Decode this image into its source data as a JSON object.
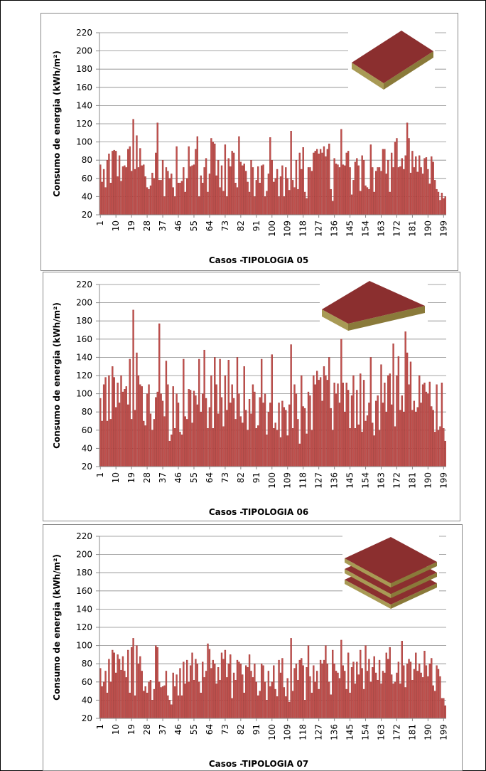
{
  "chart_data": [
    {
      "type": "bar",
      "ylabel": "Consumo de energia (kWh/m²)",
      "xlabel": "Casos -TIPOLOGIA 05",
      "color": "#c0504d",
      "x": [
        1,
        2,
        3,
        4,
        5,
        6,
        7,
        8,
        9,
        10,
        11,
        12,
        13,
        14,
        15,
        16,
        17,
        18,
        19,
        20,
        21,
        22,
        23,
        24,
        25,
        26,
        27,
        28,
        29,
        30,
        31,
        32,
        33,
        34,
        35,
        36,
        37,
        38,
        39,
        40,
        41,
        42,
        43,
        44,
        45,
        46,
        47,
        48,
        49,
        50,
        51,
        52,
        53,
        54,
        55,
        56,
        57,
        58,
        59,
        60,
        61,
        62,
        63,
        64,
        65,
        66,
        67,
        68,
        69,
        70,
        71,
        72,
        73,
        74,
        75,
        76,
        77,
        78,
        79,
        80,
        81,
        82,
        83,
        84,
        85,
        86,
        87,
        88,
        89,
        90,
        91,
        92,
        93,
        94,
        95,
        96,
        97,
        98,
        99,
        100,
        101,
        102,
        103,
        104,
        105,
        106,
        107,
        108,
        109,
        110,
        111,
        112,
        113,
        114,
        115,
        116,
        117,
        118,
        119,
        120,
        121,
        122,
        123,
        124,
        125,
        126,
        127,
        128,
        129,
        130,
        131,
        132,
        133,
        134,
        135,
        136,
        137,
        138,
        139,
        140,
        141,
        142,
        143,
        144,
        145,
        146,
        147,
        148,
        149,
        150,
        151,
        152,
        153,
        154,
        155,
        156,
        157,
        158,
        159,
        160,
        161,
        162,
        163,
        164,
        165,
        166,
        167,
        168,
        169,
        170,
        171,
        172,
        173,
        174,
        175,
        176,
        177,
        178,
        179,
        180,
        181,
        182,
        183,
        184,
        185,
        186,
        187,
        188,
        189,
        190,
        191,
        192,
        193,
        194,
        195,
        196,
        197,
        198,
        199,
        200
      ],
      "values": [
        75,
        56,
        70,
        50,
        80,
        87,
        55,
        90,
        91,
        90,
        62,
        85,
        57,
        73,
        74,
        72,
        92,
        95,
        68,
        125,
        70,
        107,
        72,
        93,
        74,
        75,
        62,
        50,
        48,
        52,
        66,
        60,
        88,
        121,
        58,
        58,
        80,
        40,
        72,
        68,
        60,
        65,
        50,
        40,
        95,
        55,
        55,
        57,
        72,
        45,
        60,
        95,
        73,
        74,
        75,
        92,
        106,
        40,
        63,
        55,
        72,
        82,
        45,
        65,
        104,
        100,
        98,
        63,
        80,
        50,
        74,
        46,
        97,
        40,
        82,
        73,
        90,
        88,
        55,
        50,
        106,
        78,
        74,
        76,
        68,
        56,
        45,
        80,
        72,
        40,
        58,
        73,
        55,
        74,
        75,
        40,
        46,
        65,
        105,
        80,
        56,
        60,
        70,
        40,
        62,
        74,
        40,
        72,
        60,
        47,
        112,
        58,
        50,
        80,
        48,
        88,
        70,
        94,
        45,
        38,
        72,
        72,
        68,
        88,
        90,
        92,
        87,
        92,
        88,
        95,
        84,
        92,
        98,
        48,
        35,
        82,
        76,
        75,
        72,
        114,
        75,
        74,
        88,
        90,
        72,
        42,
        58,
        78,
        82,
        74,
        46,
        85,
        80,
        52,
        50,
        48,
        97,
        72,
        45,
        68,
        72,
        72,
        68,
        92,
        92,
        65,
        80,
        45,
        88,
        72,
        100,
        104,
        72,
        73,
        82,
        70,
        85,
        121,
        104,
        66,
        90,
        72,
        84,
        67,
        85,
        72,
        65,
        82,
        83,
        70,
        54,
        84,
        78,
        58,
        48,
        45,
        36,
        44,
        38,
        40
      ],
      "xlim": [
        0.5,
        200.5
      ],
      "xticks": [
        1,
        10,
        19,
        28,
        37,
        46,
        55,
        64,
        73,
        82,
        91,
        100,
        109,
        118,
        127,
        136,
        145,
        154,
        163,
        172,
        181,
        190,
        199
      ],
      "ylim": [
        20,
        220
      ],
      "yticks": [
        20,
        40,
        60,
        80,
        100,
        120,
        140,
        160,
        180,
        200,
        220
      ],
      "grid": true
    },
    {
      "type": "bar",
      "ylabel": "Consumo de energia (kWh/m²)",
      "xlabel": "Casos -TIPOLOGIA 06",
      "color": "#c0504d",
      "x": [
        1,
        2,
        3,
        4,
        5,
        6,
        7,
        8,
        9,
        10,
        11,
        12,
        13,
        14,
        15,
        16,
        17,
        18,
        19,
        20,
        21,
        22,
        23,
        24,
        25,
        26,
        27,
        28,
        29,
        30,
        31,
        32,
        33,
        34,
        35,
        36,
        37,
        38,
        39,
        40,
        41,
        42,
        43,
        44,
        45,
        46,
        47,
        48,
        49,
        50,
        51,
        52,
        53,
        54,
        55,
        56,
        57,
        58,
        59,
        60,
        61,
        62,
        63,
        64,
        65,
        66,
        67,
        68,
        69,
        70,
        71,
        72,
        73,
        74,
        75,
        76,
        77,
        78,
        79,
        80,
        81,
        82,
        83,
        84,
        85,
        86,
        87,
        88,
        89,
        90,
        91,
        92,
        93,
        94,
        95,
        96,
        97,
        98,
        99,
        100,
        101,
        102,
        103,
        104,
        105,
        106,
        107,
        108,
        109,
        110,
        111,
        112,
        113,
        114,
        115,
        116,
        117,
        118,
        119,
        120,
        121,
        122,
        123,
        124,
        125,
        126,
        127,
        128,
        129,
        130,
        131,
        132,
        133,
        134,
        135,
        136,
        137,
        138,
        139,
        140,
        141,
        142,
        143,
        144,
        145,
        146,
        147,
        148,
        149,
        150,
        151,
        152,
        153,
        154,
        155,
        156,
        157,
        158,
        159,
        160,
        161,
        162,
        163,
        164,
        165,
        166,
        167,
        168,
        169,
        170,
        171,
        172,
        173,
        174,
        175,
        176,
        177,
        178,
        179,
        180,
        181,
        182,
        183,
        184,
        185,
        186,
        187,
        188,
        189,
        190,
        191,
        192,
        193,
        194,
        195,
        196,
        197,
        198,
        199,
        200
      ],
      "values": [
        95,
        70,
        110,
        118,
        70,
        120,
        72,
        130,
        118,
        85,
        112,
        90,
        120,
        102,
        105,
        108,
        88,
        138,
        72,
        192,
        82,
        145,
        120,
        110,
        108,
        70,
        65,
        100,
        110,
        78,
        60,
        72,
        96,
        102,
        177,
        100,
        92,
        75,
        136,
        110,
        48,
        55,
        108,
        62,
        100,
        90,
        58,
        55,
        138,
        75,
        72,
        105,
        104,
        68,
        103,
        98,
        88,
        138,
        80,
        100,
        148,
        95,
        62,
        85,
        120,
        62,
        140,
        110,
        78,
        138,
        96,
        64,
        120,
        82,
        137,
        90,
        110,
        95,
        72,
        140,
        100,
        75,
        68,
        130,
        82,
        60,
        94,
        78,
        110,
        102,
        62,
        65,
        96,
        138,
        90,
        100,
        55,
        80,
        90,
        143,
        62,
        68,
        60,
        90,
        52,
        92,
        85,
        82,
        54,
        88,
        154,
        62,
        110,
        100,
        72,
        45,
        120,
        86,
        84,
        56,
        102,
        98,
        60,
        120,
        110,
        125,
        115,
        118,
        92,
        130,
        120,
        115,
        140,
        84,
        60,
        112,
        100,
        111,
        90,
        160,
        112,
        80,
        112,
        104,
        62,
        98,
        120,
        62,
        104,
        66,
        122,
        58,
        115,
        70,
        76,
        90,
        140,
        68,
        54,
        92,
        98,
        60,
        132,
        90,
        112,
        80,
        120,
        122,
        88,
        155,
        64,
        120,
        141,
        82,
        98,
        80,
        186,
        145,
        110,
        135,
        82,
        92,
        80,
        85,
        120,
        90,
        110,
        112,
        102,
        100,
        113,
        86,
        82,
        58,
        110,
        60,
        64,
        112,
        62,
        48
      ],
      "xlim": [
        0.5,
        200.5
      ],
      "xticks": [
        1,
        10,
        19,
        28,
        37,
        46,
        55,
        64,
        73,
        82,
        91,
        100,
        109,
        118,
        127,
        136,
        145,
        154,
        163,
        172,
        181,
        190,
        199
      ],
      "ylim": [
        20,
        220
      ],
      "yticks": [
        20,
        40,
        60,
        80,
        100,
        120,
        140,
        160,
        180,
        200,
        220
      ],
      "grid": true
    },
    {
      "type": "bar",
      "ylabel": "Consumo de energia (kWh/m²)",
      "xlabel": "Casos -TIPOLOGIA 07",
      "color": "#c0504d",
      "x": [
        1,
        2,
        3,
        4,
        5,
        6,
        7,
        8,
        9,
        10,
        11,
        12,
        13,
        14,
        15,
        16,
        17,
        18,
        19,
        20,
        21,
        22,
        23,
        24,
        25,
        26,
        27,
        28,
        29,
        30,
        31,
        32,
        33,
        34,
        35,
        36,
        37,
        38,
        39,
        40,
        41,
        42,
        43,
        44,
        45,
        46,
        47,
        48,
        49,
        50,
        51,
        52,
        53,
        54,
        55,
        56,
        57,
        58,
        59,
        60,
        61,
        62,
        63,
        64,
        65,
        66,
        67,
        68,
        69,
        70,
        71,
        72,
        73,
        74,
        75,
        76,
        77,
        78,
        79,
        80,
        81,
        82,
        83,
        84,
        85,
        86,
        87,
        88,
        89,
        90,
        91,
        92,
        93,
        94,
        95,
        96,
        97,
        98,
        99,
        100,
        101,
        102,
        103,
        104,
        105,
        106,
        107,
        108,
        109,
        110,
        111,
        112,
        113,
        114,
        115,
        116,
        117,
        118,
        119,
        120,
        121,
        122,
        123,
        124,
        125,
        126,
        127,
        128,
        129,
        130,
        131,
        132,
        133,
        134,
        135,
        136,
        137,
        138,
        139,
        140,
        141,
        142,
        143,
        144,
        145,
        146,
        147,
        148,
        149,
        150,
        151,
        152,
        153,
        154,
        155,
        156,
        157,
        158,
        159,
        160,
        161,
        162,
        163,
        164,
        165,
        166,
        167,
        168,
        169,
        170,
        171,
        172,
        173,
        174,
        175,
        176,
        177,
        178,
        179,
        180,
        181,
        182,
        183,
        184,
        185,
        186,
        187,
        188,
        189,
        190,
        191,
        192,
        193,
        194,
        195,
        196,
        197,
        198,
        199,
        200
      ],
      "values": [
        75,
        55,
        60,
        72,
        48,
        85,
        60,
        95,
        92,
        70,
        90,
        85,
        73,
        88,
        72,
        65,
        95,
        48,
        98,
        108,
        45,
        100,
        80,
        88,
        72,
        50,
        55,
        48,
        60,
        62,
        40,
        52,
        100,
        98,
        60,
        54,
        55,
        56,
        72,
        45,
        40,
        35,
        70,
        55,
        68,
        45,
        75,
        45,
        82,
        58,
        84,
        60,
        78,
        92,
        62,
        85,
        80,
        60,
        48,
        82,
        65,
        72,
        102,
        96,
        75,
        84,
        80,
        58,
        76,
        62,
        92,
        85,
        95,
        65,
        80,
        90,
        42,
        70,
        62,
        84,
        82,
        80,
        68,
        48,
        78,
        76,
        90,
        72,
        65,
        80,
        60,
        45,
        50,
        80,
        78,
        60,
        40,
        72,
        55,
        60,
        78,
        52,
        44,
        84,
        70,
        86,
        54,
        44,
        64,
        38,
        108,
        50,
        75,
        80,
        62,
        84,
        86,
        78,
        40,
        76,
        100,
        66,
        48,
        78,
        60,
        72,
        52,
        84,
        80,
        84,
        100,
        80,
        60,
        46,
        95,
        80,
        72,
        70,
        64,
        106,
        78,
        72,
        52,
        92,
        48,
        76,
        82,
        58,
        82,
        68,
        95,
        75,
        52,
        100,
        72,
        85,
        60,
        76,
        88,
        70,
        62,
        84,
        58,
        72,
        70,
        92,
        85,
        98,
        68,
        58,
        60,
        70,
        82,
        58,
        105,
        78,
        54,
        80,
        85,
        82,
        62,
        74,
        92,
        72,
        80,
        70,
        65,
        94,
        78,
        66,
        80,
        86,
        56,
        50,
        78,
        74,
        66,
        42,
        42,
        34
      ],
      "xlim": [
        0.5,
        200.5
      ],
      "xticks": [
        1,
        10,
        19,
        28,
        37,
        46,
        55,
        64,
        73,
        82,
        91,
        100,
        109,
        118,
        127,
        136,
        145,
        154,
        163,
        172,
        181,
        190,
        199
      ],
      "ylim": [
        20,
        220
      ],
      "yticks": [
        20,
        40,
        60,
        80,
        100,
        120,
        140,
        160,
        180,
        200,
        220
      ],
      "grid": true
    }
  ]
}
